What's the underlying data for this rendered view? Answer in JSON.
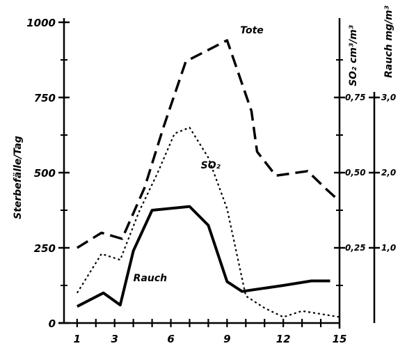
{
  "chart_data": {
    "type": "line",
    "x": [
      1,
      2,
      3,
      4,
      5,
      6,
      7,
      8,
      9,
      10,
      11,
      12,
      13,
      14,
      15
    ],
    "x_ticks": [
      "1",
      "3",
      "6",
      "9",
      "12",
      "15"
    ],
    "left_axis": {
      "ylabel": "Sterbefälle/Tag",
      "ticks": [
        "0",
        "250",
        "500",
        "750",
        "1000"
      ],
      "ylim": [
        0,
        1000
      ]
    },
    "right_axis_so2": {
      "ylabel": "SO₂ cm³/m³",
      "ticks": [
        "0,25",
        "0,50",
        "0,75"
      ],
      "ylim": [
        0,
        1.0
      ]
    },
    "right_axis_rauch": {
      "ylabel": "Rauch mg/m³",
      "ticks": [
        "1,0",
        "2,0",
        "3,0"
      ],
      "ylim": [
        0,
        4.0
      ]
    },
    "series": [
      {
        "name": "Tote",
        "axis": "left",
        "style": "dashed",
        "x": [
          1,
          2.3,
          3.4,
          4.6,
          5.6,
          6.8,
          9.0,
          10.3,
          10.6,
          11.6,
          13.3,
          14.3,
          15.0
        ],
        "y": [
          250,
          300,
          280,
          450,
          650,
          870,
          940,
          705,
          570,
          490,
          505,
          445,
          405
        ]
      },
      {
        "name": "SO₂",
        "axis": "so2",
        "style": "dotted",
        "x": [
          1,
          2.3,
          3.3,
          4.3,
          5.3,
          6.2,
          7.0,
          8.0,
          9.0,
          10.0,
          11.0,
          12.0,
          13.0,
          14.0,
          15.0
        ],
        "y": [
          0.1,
          0.23,
          0.21,
          0.37,
          0.5,
          0.63,
          0.65,
          0.55,
          0.38,
          0.09,
          0.05,
          0.02,
          0.04,
          0.03,
          0.02
        ]
      },
      {
        "name": "Rauch",
        "axis": "rauch",
        "style": "solid",
        "x": [
          1,
          2.4,
          3.3,
          4.0,
          5.0,
          7.0,
          8.0,
          9.0,
          9.8,
          12.0,
          13.5,
          14.5
        ],
        "y": [
          0.22,
          0.4,
          0.24,
          0.96,
          1.5,
          1.55,
          1.3,
          0.55,
          0.42,
          0.5,
          0.56,
          0.56
        ]
      }
    ],
    "grid": false,
    "legend": "inline labels"
  }
}
